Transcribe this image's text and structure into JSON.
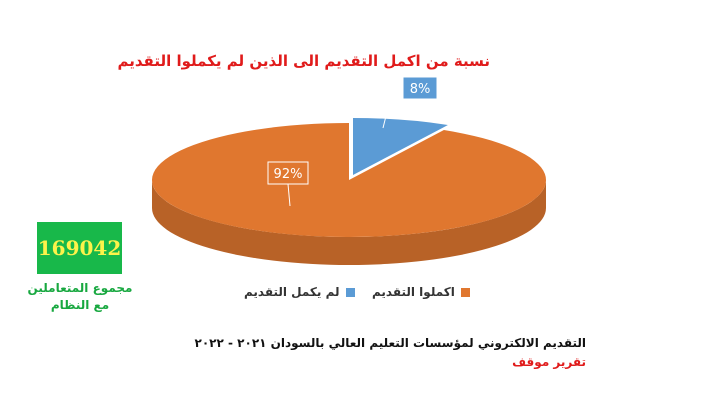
{
  "chart_data": {
    "type": "pie",
    "title": "نسبة من اكمل التقديم الى الذين لم يكملوا التقديم",
    "categories": [
      "اكملوا التقديم",
      "لم يكمل التقديم"
    ],
    "values": [
      92,
      8
    ],
    "data_labels": [
      "92%",
      "8%"
    ],
    "colors": [
      "#e0772f",
      "#5b9bd5"
    ],
    "legend_position": "bottom"
  },
  "total": {
    "value": "169042",
    "label_line1": "مجموع المتعاملين",
    "label_line2": "مع النظام"
  },
  "footer": {
    "title": "التقديم الالكتروني لمؤسسات التعليم العالي بالسودان ٢٠٢١ - ٢٠٢٢",
    "subtitle": "تقرير موقف"
  },
  "colors": {
    "total_box": "#18b84a",
    "total_text": "#fdf34a",
    "accent_red": "#e01b1b"
  }
}
